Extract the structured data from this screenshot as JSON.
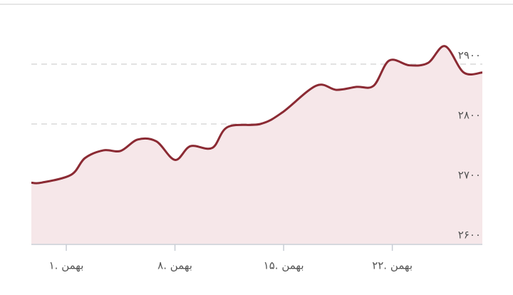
{
  "chart_data": {
    "type": "area",
    "x": [
      -1.25,
      -0.6,
      1.3,
      2.2,
      3.4,
      4.5,
      5.6,
      6.8,
      8,
      9,
      10.4,
      11.4,
      13.5,
      14.9,
      17.1,
      18.4,
      19.7,
      20.8,
      21.8,
      23.1,
      24.3,
      25.4,
      26.6,
      27.8
    ],
    "values": [
      2702,
      2702,
      2715,
      2743,
      2756,
      2755,
      2774,
      2771,
      2740,
      2763,
      2760,
      2795,
      2800,
      2819,
      2864,
      2857,
      2862,
      2864,
      2906,
      2898,
      2902,
      2930,
      2886,
      2886
    ],
    "color": "#8b2a33",
    "fill": "#f6e7e9",
    "xlim": [
      -1.25,
      27.8
    ],
    "xticks": [
      {
        "value": 1,
        "label": "۱. بهمن"
      },
      {
        "value": 8,
        "label": "۸. بهمن"
      },
      {
        "value": 15,
        "label": "۱۵. بهمن"
      },
      {
        "value": 22,
        "label": "۲۲. بهمن"
      }
    ],
    "ylim": [
      2600,
      2990
    ],
    "yticks": [
      {
        "value": 2600,
        "label": "۲۶۰۰"
      },
      {
        "value": 2700,
        "label": "۲۷۰۰"
      },
      {
        "value": 2800,
        "label": "۲۸۰۰"
      },
      {
        "value": 2900,
        "label": "۲۹۰۰"
      }
    ],
    "grid": true
  }
}
